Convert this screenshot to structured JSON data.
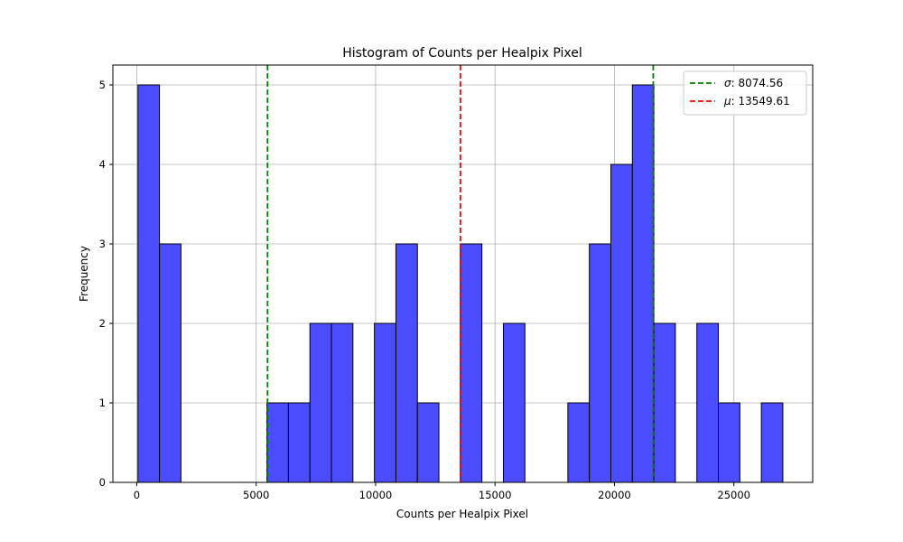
{
  "chart_data": {
    "type": "bar",
    "title": "Histogram of Counts per Healpix Pixel",
    "xlabel": "Counts per Healpix Pixel",
    "ylabel": "Frequency",
    "xlim": [
      -1000,
      28300
    ],
    "ylim": [
      0,
      5.25
    ],
    "xticks": [
      0,
      5000,
      10000,
      15000,
      20000,
      25000
    ],
    "yticks": [
      0,
      1,
      2,
      3,
      4,
      5
    ],
    "grid": true,
    "bar_color": "#4b4bff",
    "edge_color": "#000000",
    "bins": [
      {
        "x0": 50,
        "x1": 950,
        "count": 5
      },
      {
        "x0": 950,
        "x1": 1850,
        "count": 3
      },
      {
        "x0": 1850,
        "x1": 2750,
        "count": 0
      },
      {
        "x0": 2750,
        "x1": 3650,
        "count": 0
      },
      {
        "x0": 3650,
        "x1": 4550,
        "count": 0
      },
      {
        "x0": 4550,
        "x1": 5450,
        "count": 0
      },
      {
        "x0": 5450,
        "x1": 6350,
        "count": 1
      },
      {
        "x0": 6350,
        "x1": 7250,
        "count": 1
      },
      {
        "x0": 7250,
        "x1": 8150,
        "count": 2
      },
      {
        "x0": 8150,
        "x1": 9050,
        "count": 2
      },
      {
        "x0": 9050,
        "x1": 9950,
        "count": 0
      },
      {
        "x0": 9950,
        "x1": 10850,
        "count": 2
      },
      {
        "x0": 10850,
        "x1": 11750,
        "count": 3
      },
      {
        "x0": 11750,
        "x1": 12650,
        "count": 1
      },
      {
        "x0": 12650,
        "x1": 13550,
        "count": 0
      },
      {
        "x0": 13550,
        "x1": 14450,
        "count": 3
      },
      {
        "x0": 14450,
        "x1": 15350,
        "count": 0
      },
      {
        "x0": 15350,
        "x1": 16250,
        "count": 2
      },
      {
        "x0": 16250,
        "x1": 17150,
        "count": 0
      },
      {
        "x0": 17150,
        "x1": 18050,
        "count": 0
      },
      {
        "x0": 18050,
        "x1": 18950,
        "count": 1
      },
      {
        "x0": 18950,
        "x1": 19850,
        "count": 3
      },
      {
        "x0": 19850,
        "x1": 20750,
        "count": 4
      },
      {
        "x0": 20750,
        "x1": 21650,
        "count": 5
      },
      {
        "x0": 21650,
        "x1": 22550,
        "count": 2
      },
      {
        "x0": 22550,
        "x1": 23450,
        "count": 0
      },
      {
        "x0": 23450,
        "x1": 24350,
        "count": 2
      },
      {
        "x0": 24350,
        "x1": 25250,
        "count": 1
      },
      {
        "x0": 25250,
        "x1": 26150,
        "count": 0
      },
      {
        "x0": 26150,
        "x1": 27050,
        "count": 1
      }
    ],
    "vlines": [
      {
        "x": 5475,
        "color": "#008000",
        "label": "σ: 8074.56"
      },
      {
        "x": 13550,
        "color": "#ff0000",
        "label": "μ: 13549.61"
      },
      {
        "x": 21625,
        "color": "#008000",
        "label": ""
      }
    ],
    "legend": {
      "position": "upper-right",
      "entries": [
        {
          "symbol": "σ",
          "text": ": 8074.56",
          "color": "#008000"
        },
        {
          "symbol": "μ",
          "text": ": 13549.61",
          "color": "#ff0000"
        }
      ]
    }
  }
}
